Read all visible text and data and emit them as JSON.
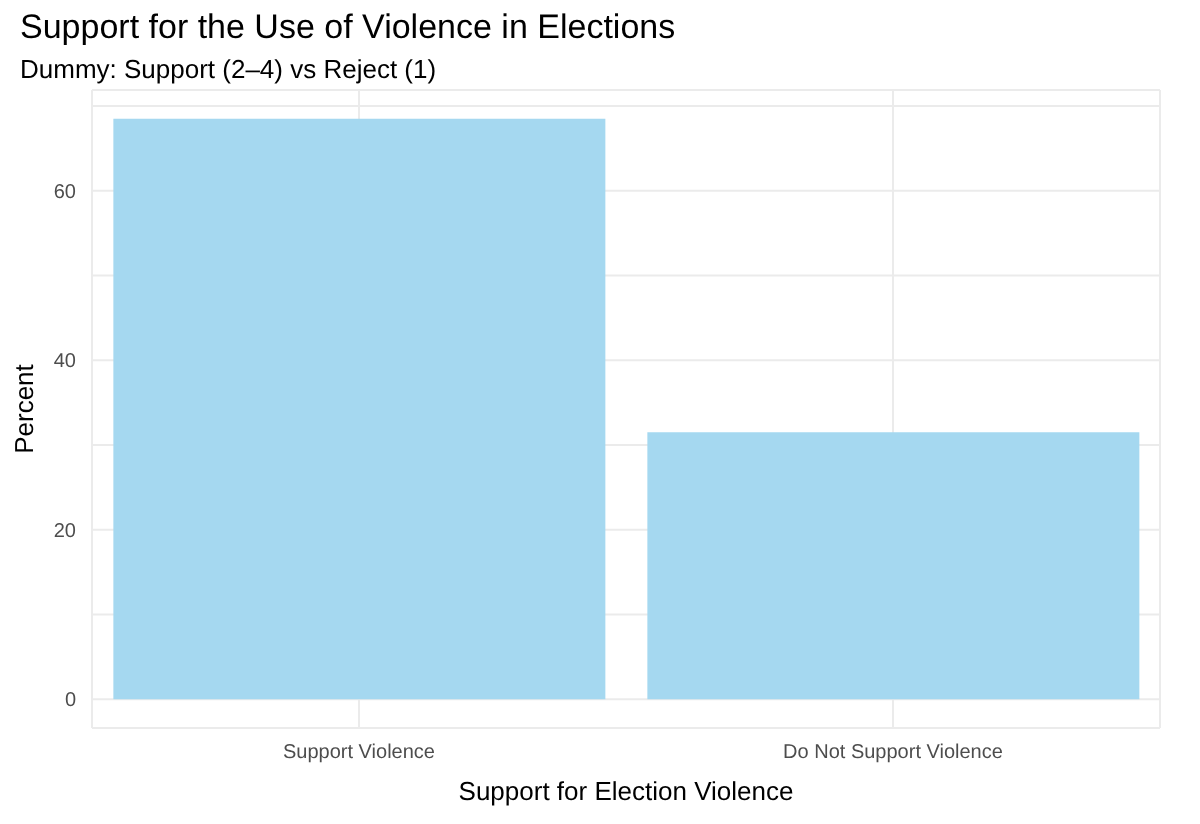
{
  "chart_data": {
    "type": "bar",
    "title": "Support for the Use of Violence in Elections",
    "subtitle": "Dummy: Support (2–4) vs Reject (1)",
    "xlabel": "Support for Election Violence",
    "ylabel": "Percent",
    "categories": [
      "Support Violence",
      "Do Not Support Violence"
    ],
    "values": [
      68.5,
      31.5
    ],
    "color": "#a5d8f0",
    "ylim": [
      -3.4,
      71.9
    ],
    "yticks": [
      0,
      {
        "value": 10,
        "label": null
      },
      20,
      {
        "value": 30,
        "label": null
      },
      40,
      {
        "value": 50,
        "label": null
      },
      60,
      {
        "value": 70,
        "label": null
      }
    ],
    "grid": true
  }
}
